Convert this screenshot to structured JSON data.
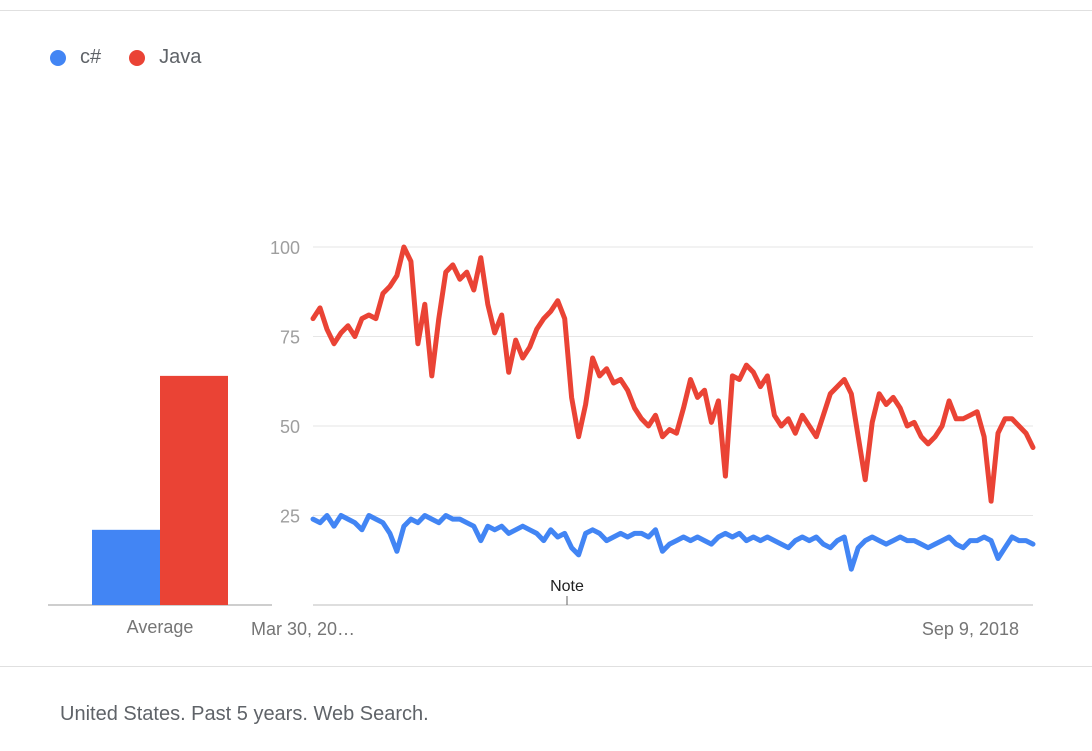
{
  "legend": [
    {
      "name": "c#",
      "color": "#4285f4"
    },
    {
      "name": "Java",
      "color": "#ea4335"
    }
  ],
  "footer_text": "United States. Past 5 years. Web Search.",
  "chart_data": [
    {
      "type": "bar",
      "categories": [
        "Average"
      ],
      "series": [
        {
          "name": "c#",
          "values": [
            21
          ],
          "color": "#4285f4"
        },
        {
          "name": "Java",
          "values": [
            64
          ],
          "color": "#ea4335"
        }
      ],
      "ylim": [
        0,
        100
      ]
    },
    {
      "type": "line",
      "x_tick_labels": [
        "Mar 30, 20…",
        "Sep 9, 2018"
      ],
      "y_ticks": [
        25,
        50,
        75,
        100
      ],
      "ylim": [
        0,
        100
      ],
      "grid": true,
      "annotation": "Note",
      "series": [
        {
          "name": "Java",
          "color": "#ea4335",
          "values": [
            80,
            83,
            77,
            73,
            76,
            78,
            75,
            80,
            81,
            80,
            87,
            89,
            92,
            100,
            96,
            73,
            84,
            64,
            80,
            93,
            95,
            91,
            93,
            88,
            97,
            84,
            76,
            81,
            65,
            74,
            69,
            72,
            77,
            80,
            82,
            85,
            80,
            58,
            47,
            56,
            69,
            64,
            66,
            62,
            63,
            60,
            55,
            52,
            50,
            53,
            47,
            49,
            48,
            55,
            63,
            58,
            60,
            51,
            57,
            36,
            64,
            63,
            67,
            65,
            61,
            64,
            53,
            50,
            52,
            48,
            53,
            50,
            47,
            53,
            59,
            61,
            63,
            59,
            47,
            35,
            51,
            59,
            56,
            58,
            55,
            50,
            51,
            47,
            45,
            47,
            50,
            57,
            52,
            52,
            53,
            54,
            47,
            29,
            48,
            52,
            52,
            50,
            48,
            44
          ]
        },
        {
          "name": "c#",
          "color": "#4285f4",
          "values": [
            24,
            23,
            25,
            22,
            25,
            24,
            23,
            21,
            25,
            24,
            23,
            20,
            15,
            22,
            24,
            23,
            25,
            24,
            23,
            25,
            24,
            24,
            23,
            22,
            18,
            22,
            21,
            22,
            20,
            21,
            22,
            21,
            20,
            18,
            21,
            19,
            20,
            16,
            14,
            20,
            21,
            20,
            18,
            19,
            20,
            19,
            20,
            20,
            19,
            21,
            15,
            17,
            18,
            19,
            18,
            19,
            18,
            17,
            19,
            20,
            19,
            20,
            18,
            19,
            18,
            19,
            18,
            17,
            16,
            18,
            19,
            18,
            19,
            17,
            16,
            18,
            19,
            10,
            16,
            18,
            19,
            18,
            17,
            18,
            19,
            18,
            18,
            17,
            16,
            17,
            18,
            19,
            17,
            16,
            18,
            18,
            19,
            18,
            13,
            16,
            19,
            18,
            18,
            17
          ]
        }
      ]
    }
  ]
}
